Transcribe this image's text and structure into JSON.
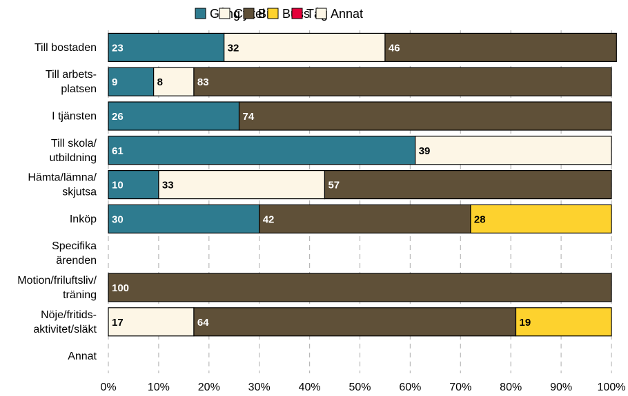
{
  "chart_data": {
    "type": "bar",
    "orientation": "horizontal",
    "stacked": true,
    "categories": [
      [
        "Till bostaden"
      ],
      [
        "Till arbets-",
        "platsen"
      ],
      [
        "I tjänsten"
      ],
      [
        "Till skola/",
        "utbildning"
      ],
      [
        "Hämta/lämna/",
        "skjutsa"
      ],
      [
        "Inköp"
      ],
      [
        "Specifika",
        "ärenden"
      ],
      [
        "Motion/friluftsliv/",
        "träning"
      ],
      [
        "Nöje/fritids-",
        "aktivitet/släkt"
      ],
      [
        "Annat"
      ]
    ],
    "series": [
      {
        "name": "Gång",
        "color": "#2e7b8f",
        "label_color": "#ffffff",
        "values": [
          23,
          9,
          26,
          61,
          10,
          30,
          0,
          0,
          0,
          0
        ]
      },
      {
        "name": "Cykel",
        "color": "#fdf6e6",
        "label_color": "#000000",
        "values": [
          32,
          8,
          0,
          39,
          33,
          0,
          0,
          0,
          17,
          0
        ]
      },
      {
        "name": "Bil",
        "color": "#5f5038",
        "label_color": "#ffffff",
        "values": [
          46,
          83,
          74,
          0,
          57,
          42,
          0,
          100,
          64,
          0
        ]
      },
      {
        "name": "Buss",
        "color": "#fdd22e",
        "label_color": "#000000",
        "values": [
          0,
          0,
          0,
          0,
          0,
          28,
          0,
          0,
          19,
          0
        ]
      },
      {
        "name": "Tåg",
        "color": "#e4003a",
        "label_color": "#ffffff",
        "values": [
          0,
          0,
          0,
          0,
          0,
          0,
          0,
          0,
          0,
          0
        ]
      },
      {
        "name": "Annat",
        "color": "#fdf6e6",
        "label_color": "#000000",
        "values": [
          0,
          0,
          0,
          0,
          0,
          0,
          0,
          0,
          0,
          0
        ]
      }
    ],
    "xlim": [
      0,
      100
    ],
    "xticks": [
      "0%",
      "10%",
      "20%",
      "30%",
      "40%",
      "50%",
      "60%",
      "70%",
      "80%",
      "90%",
      "100%"
    ],
    "grid": "vertical dashed",
    "legend_position": "top"
  }
}
